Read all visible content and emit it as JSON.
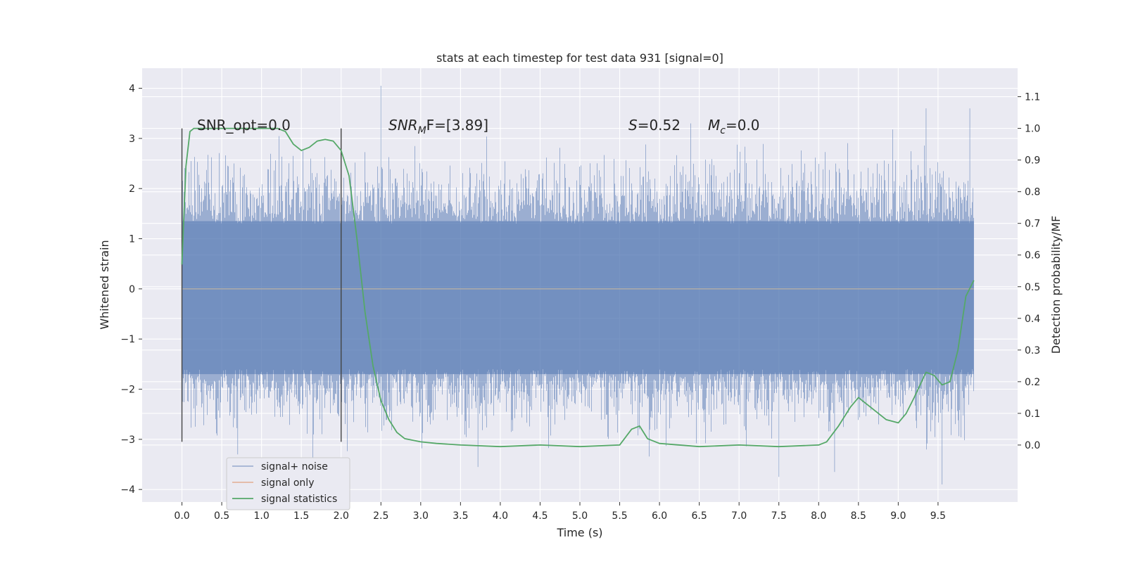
{
  "chart_data": {
    "type": "line",
    "title": "stats at each timestep for test data 931 [signal=0]",
    "xlabel": "Time (s)",
    "ylabel": "Whitened strain",
    "y2label": "Detection probability/MF",
    "xlim": [
      -0.5,
      10.5
    ],
    "ylim": [
      -4.25,
      4.4
    ],
    "y2lim": [
      -0.18,
      1.19
    ],
    "x_ticks": [
      "0.0",
      "0.5",
      "1.0",
      "1.5",
      "2.0",
      "2.5",
      "3.0",
      "3.5",
      "4.0",
      "4.5",
      "5.0",
      "5.5",
      "6.0",
      "6.5",
      "7.0",
      "7.5",
      "8.0",
      "8.5",
      "9.0",
      "9.5"
    ],
    "y_ticks": [
      "4",
      "3",
      "2",
      "1",
      "0",
      "−1",
      "−2",
      "−3",
      "−4"
    ],
    "y2_ticks": [
      "1.1",
      "1.0",
      "0.9",
      "0.8",
      "0.7",
      "0.6",
      "0.5",
      "0.4",
      "0.3",
      "0.2",
      "0.1",
      "0.0"
    ],
    "grid": true,
    "legend_position": "lower-left",
    "colors": {
      "noise": "#4c72b0",
      "signal": "#dd8452",
      "stats": "#55a868",
      "vline": "#444444",
      "background": "#eaeaf2",
      "grid": "#ffffff"
    },
    "annotations": {
      "snr_opt": "SNR_opt=0.0",
      "snr_mf_base": "SNR",
      "snr_mf_sub": "M",
      "snr_mf_rest": "F=[3.89]",
      "s_label": "S",
      "s_value": "=0.52",
      "mc_base": "M",
      "mc_sub": "c",
      "mc_value": "=0.0"
    },
    "vlines": [
      {
        "x": 0.0,
        "ymin": -3.05,
        "ymax": 3.2
      },
      {
        "x": 2.0,
        "ymin": -3.05,
        "ymax": 3.2
      }
    ],
    "series": [
      {
        "name": "signal+ noise",
        "description": "whitened strain samples, Gaussian noise",
        "x_range": [
          0.0,
          9.95
        ],
        "core_band": [
          -1.7,
          1.35
        ],
        "extremes": [
          {
            "x": 0.7,
            "y": -3.3
          },
          {
            "x": 2.5,
            "y": 4.05
          },
          {
            "x": 3.72,
            "y": -3.55
          },
          {
            "x": 7.5,
            "y": -3.75
          },
          {
            "x": 8.2,
            "y": -3.65
          },
          {
            "x": 9.35,
            "y": 3.6
          },
          {
            "x": 9.55,
            "y": -3.9
          },
          {
            "x": 9.9,
            "y": 3.6
          }
        ]
      },
      {
        "name": "signal only",
        "x": [
          0.0,
          9.95
        ],
        "y": [
          0.0,
          0.0
        ]
      },
      {
        "name": "signal statistics",
        "x": [
          0.0,
          0.05,
          0.1,
          0.15,
          0.2,
          0.3,
          0.5,
          0.8,
          1.0,
          1.2,
          1.3,
          1.4,
          1.5,
          1.6,
          1.7,
          1.8,
          1.9,
          2.0,
          2.1,
          2.2,
          2.3,
          2.4,
          2.5,
          2.6,
          2.7,
          2.8,
          3.0,
          3.2,
          3.5,
          4.0,
          4.5,
          5.0,
          5.5,
          5.65,
          5.75,
          5.85,
          6.0,
          6.5,
          7.0,
          7.5,
          8.0,
          8.1,
          8.25,
          8.4,
          8.5,
          8.65,
          8.85,
          9.0,
          9.1,
          9.2,
          9.35,
          9.45,
          9.55,
          9.65,
          9.75,
          9.85,
          9.95
        ],
        "y": [
          0.57,
          0.88,
          0.99,
          1.0,
          1.0,
          1.0,
          1.0,
          1.0,
          1.0,
          1.0,
          0.99,
          0.95,
          0.93,
          0.94,
          0.96,
          0.965,
          0.96,
          0.93,
          0.85,
          0.65,
          0.42,
          0.25,
          0.14,
          0.08,
          0.04,
          0.02,
          0.01,
          0.005,
          0.0,
          -0.005,
          0.0,
          -0.005,
          0.0,
          0.05,
          0.06,
          0.02,
          0.005,
          -0.005,
          0.0,
          -0.005,
          0.0,
          0.01,
          0.06,
          0.12,
          0.15,
          0.12,
          0.08,
          0.07,
          0.1,
          0.15,
          0.23,
          0.22,
          0.19,
          0.2,
          0.3,
          0.47,
          0.52
        ]
      }
    ]
  }
}
